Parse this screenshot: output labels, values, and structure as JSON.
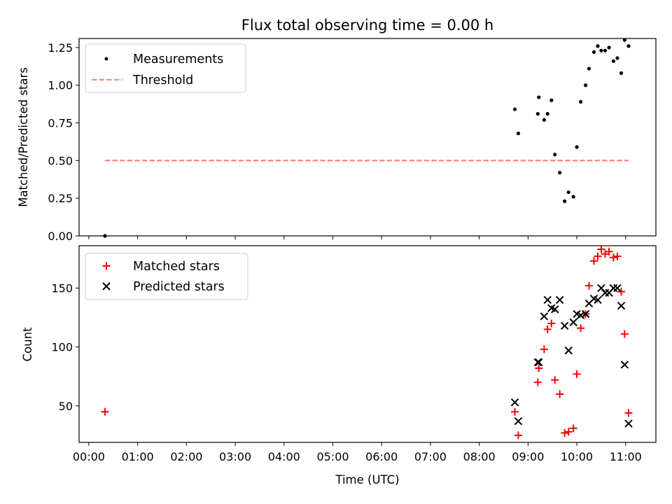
{
  "chart_data": [
    {
      "type": "scatter",
      "title": "Flux total observing time = 0.00 h",
      "xlabel": "",
      "ylabel": "Matched/Predicted stars",
      "xlim": [
        -0.2,
        11.62
      ],
      "ylim": [
        0,
        1.31
      ],
      "yticks": [
        0,
        0.25,
        0.5,
        0.75,
        1.0,
        1.25
      ],
      "ytick_labels": [
        "0.00",
        "0.25",
        "0.50",
        "0.75",
        "1.00",
        "1.25"
      ],
      "legend_position": "top-left",
      "series": [
        {
          "name": "Measurements",
          "kind": "scatter",
          "color": "#000000",
          "points": [
            [
              0.33,
              0.0
            ],
            [
              8.73,
              0.84
            ],
            [
              8.8,
              0.68
            ],
            [
              9.2,
              0.81
            ],
            [
              9.22,
              0.92
            ],
            [
              9.33,
              0.77
            ],
            [
              9.4,
              0.81
            ],
            [
              9.48,
              0.9
            ],
            [
              9.55,
              0.54
            ],
            [
              9.65,
              0.42
            ],
            [
              9.75,
              0.23
            ],
            [
              9.83,
              0.29
            ],
            [
              9.93,
              0.26
            ],
            [
              10.0,
              0.59
            ],
            [
              10.08,
              0.89
            ],
            [
              10.18,
              1.0
            ],
            [
              10.25,
              1.11
            ],
            [
              10.35,
              1.22
            ],
            [
              10.43,
              1.26
            ],
            [
              10.5,
              1.23
            ],
            [
              10.58,
              1.23
            ],
            [
              10.66,
              1.25
            ],
            [
              10.75,
              1.16
            ],
            [
              10.83,
              1.18
            ],
            [
              10.91,
              1.08
            ],
            [
              10.98,
              1.3
            ],
            [
              11.06,
              1.26
            ]
          ]
        },
        {
          "name": "Threshold",
          "kind": "line",
          "style": "dashed",
          "color": "#ff8080",
          "points": [
            [
              0.33,
              0.5
            ],
            [
              11.06,
              0.5
            ]
          ]
        }
      ]
    },
    {
      "type": "scatter",
      "title": "",
      "xlabel": "Time (UTC)",
      "ylabel": "Count",
      "xlim": [
        -0.2,
        11.62
      ],
      "ylim": [
        19,
        186
      ],
      "yticks": [
        50,
        100,
        150
      ],
      "ytick_labels": [
        "50",
        "100",
        "150"
      ],
      "xticks": [
        0,
        1,
        2,
        3,
        4,
        5,
        6,
        7,
        8,
        9,
        10,
        11
      ],
      "xtick_labels": [
        "00:00",
        "01:00",
        "02:00",
        "03:00",
        "04:00",
        "05:00",
        "06:00",
        "07:00",
        "08:00",
        "09:00",
        "10:00",
        "11:00"
      ],
      "legend_position": "top-left",
      "series": [
        {
          "name": "Matched stars",
          "marker": "plus",
          "color": "#ff0000",
          "points": [
            [
              0.33,
              45
            ],
            [
              8.73,
              45
            ],
            [
              8.8,
              25
            ],
            [
              9.2,
              70
            ],
            [
              9.22,
              82
            ],
            [
              9.33,
              98
            ],
            [
              9.4,
              115
            ],
            [
              9.48,
              120
            ],
            [
              9.55,
              72
            ],
            [
              9.65,
              60
            ],
            [
              9.75,
              27
            ],
            [
              9.83,
              28
            ],
            [
              9.93,
              31
            ],
            [
              10.0,
              77
            ],
            [
              10.08,
              116
            ],
            [
              10.18,
              128
            ],
            [
              10.25,
              152
            ],
            [
              10.35,
              173
            ],
            [
              10.43,
              177
            ],
            [
              10.5,
              183
            ],
            [
              10.58,
              179
            ],
            [
              10.66,
              181
            ],
            [
              10.75,
              176
            ],
            [
              10.83,
              177
            ],
            [
              10.91,
              147
            ],
            [
              10.98,
              111
            ],
            [
              11.06,
              44
            ]
          ]
        },
        {
          "name": "Predicted stars",
          "marker": "x",
          "color": "#000000",
          "points": [
            [
              8.73,
              53
            ],
            [
              8.8,
              37
            ],
            [
              9.2,
              87
            ],
            [
              9.22,
              87
            ],
            [
              9.33,
              126
            ],
            [
              9.4,
              140
            ],
            [
              9.48,
              133
            ],
            [
              9.55,
              132
            ],
            [
              9.65,
              140
            ],
            [
              9.75,
              118
            ],
            [
              9.83,
              97
            ],
            [
              9.93,
              121
            ],
            [
              10.0,
              128
            ],
            [
              10.08,
              127
            ],
            [
              10.18,
              128
            ],
            [
              10.25,
              137
            ],
            [
              10.35,
              141
            ],
            [
              10.43,
              140
            ],
            [
              10.5,
              150
            ],
            [
              10.58,
              146
            ],
            [
              10.66,
              146
            ],
            [
              10.75,
              150
            ],
            [
              10.83,
              150
            ],
            [
              10.91,
              135
            ],
            [
              10.98,
              85
            ],
            [
              11.06,
              35
            ]
          ]
        }
      ]
    }
  ]
}
